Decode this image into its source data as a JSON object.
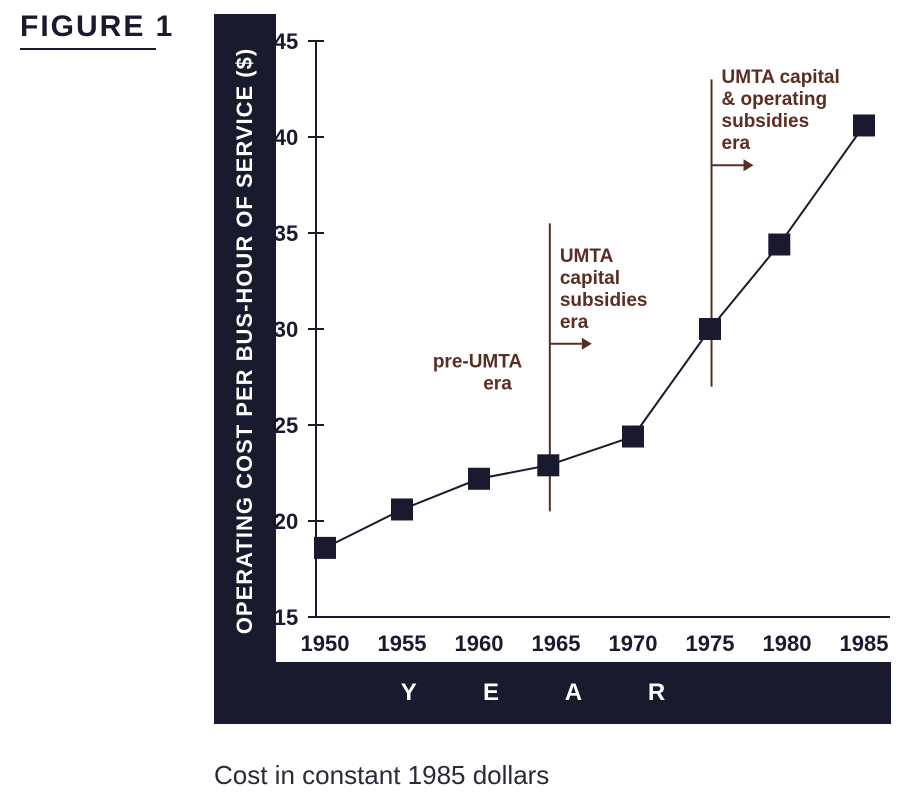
{
  "figure": {
    "label": "FIGURE 1"
  },
  "caption": "Cost in constant 1985 dollars",
  "chart_data": {
    "type": "line",
    "title": "",
    "xlabel": "Y E A R",
    "ylabel": "OPERATING COST PER BUS-HOUR OF SERVICE ($)",
    "x": [
      1950,
      1955,
      1960,
      1965,
      1970,
      1975,
      1980,
      1985
    ],
    "xticks": [
      "1950",
      "1955",
      "1960",
      "1965",
      "1970",
      "1975",
      "1980",
      "1985"
    ],
    "yticks": [
      "15",
      "20",
      "25",
      "30",
      "35",
      "40",
      "45"
    ],
    "ylim": [
      15,
      45
    ],
    "grid": false,
    "series": [
      {
        "x": [
          1950,
          1955,
          1960,
          1964.5,
          1970,
          1975,
          1979.5,
          1985
        ],
        "values": [
          18.6,
          20.6,
          22.2,
          22.9,
          24.4,
          30.0,
          34.4,
          40.6
        ],
        "marker": "square"
      }
    ],
    "annotations": [
      {
        "lines": [
          "pre-UMTA",
          "era"
        ],
        "x": 1962.5,
        "y": 28.0,
        "arrow": false
      },
      {
        "lines": [
          "UMTA",
          "capital",
          "subsidies",
          "era"
        ],
        "x": 1964.6,
        "y": 33.5,
        "arrow": true,
        "divider_year": 1964.6,
        "divider_range": [
          20.5,
          35.5
        ]
      },
      {
        "lines": [
          "UMTA capital",
          "& operating",
          "subsidies",
          "era"
        ],
        "x": 1975.1,
        "y": 42.8,
        "arrow": true,
        "divider_year": 1975.1,
        "divider_range": [
          27.0,
          43.0
        ]
      }
    ],
    "colors": {
      "line": "#1a1a2e",
      "marker": "#1a1a2e",
      "axis": "#1a1a2e",
      "annotation": "#5a2e22",
      "band": "#1a1a2e"
    }
  }
}
